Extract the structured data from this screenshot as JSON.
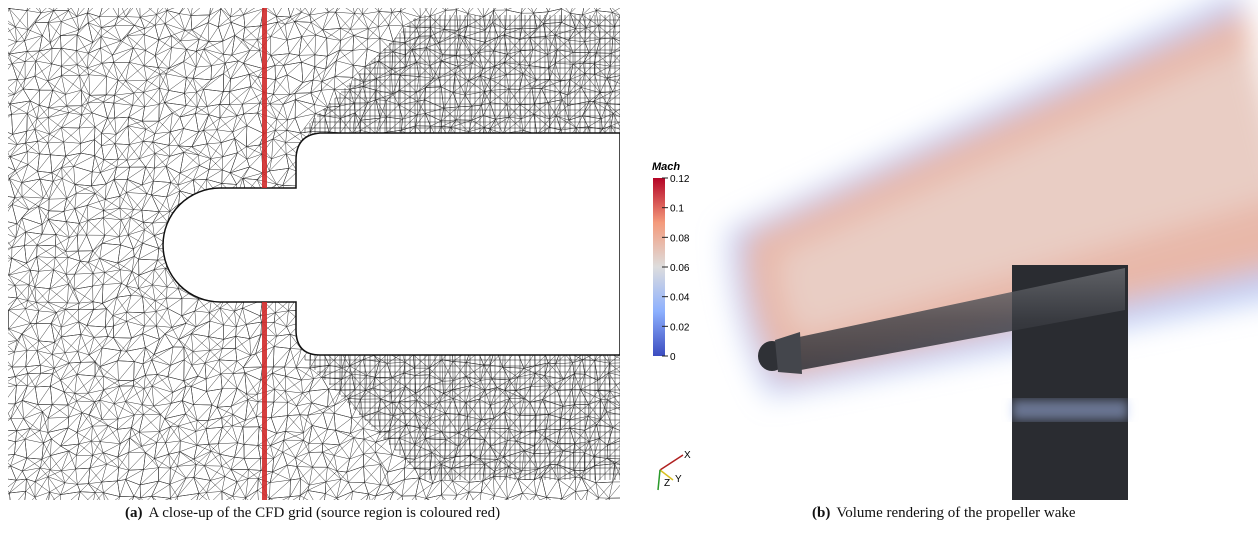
{
  "figure": {
    "colorbar": {
      "title": "Mach",
      "lim": [
        0,
        0.12
      ],
      "ticks": [
        0,
        0.02,
        0.04,
        0.06,
        0.08,
        0.1,
        0.12
      ]
    },
    "axes_triad": {
      "x": "X",
      "y": "Y",
      "z": "Z"
    },
    "captions": [
      {
        "label": "(a)",
        "text": "A close-up of the CFD grid (source region is coloured red)"
      },
      {
        "label": "(b)",
        "text": "Volume rendering of the propeller wake"
      }
    ]
  }
}
